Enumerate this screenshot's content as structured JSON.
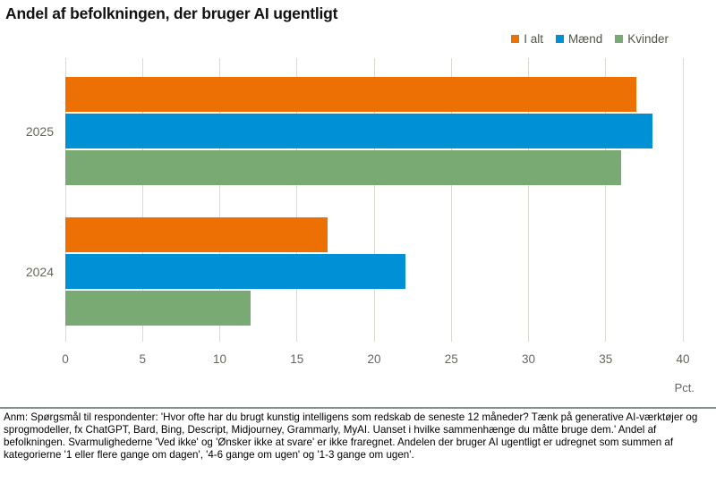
{
  "title": "Andel af befolkningen, der bruger AI ugentligt",
  "legend": [
    {
      "label": "I alt",
      "color": "#ed7004"
    },
    {
      "label": "Mænd",
      "color": "#0090d5"
    },
    {
      "label": "Kvinder",
      "color": "#7aaa73"
    }
  ],
  "axis_unit": "Pct.",
  "footnote": "Anm: Spørgsmål til respondenter: 'Hvor ofte har du brugt kunstig intelligens som redskab de seneste 12 måneder? Tænk på generative AI-værktøjer og sprogmodeller, fx ChatGPT, Bard, Bing, Descript, Midjourney, Grammarly, MyAI. Uanset i hvilke sammenhænge du måtte bruge dem.' Andel af befolkningen. Svarmulighederne 'Ved ikke' og 'Ønsker ikke at svare' er ikke fraregnet. Andelen der bruger AI ugentligt er udregnet som summen af kategorierne '1 eller flere gange om dagen', '4-6 gange om ugen' og '1-3 gange om ugen'.",
  "chart_data": {
    "type": "bar",
    "orientation": "horizontal",
    "title": "Andel af befolkningen, der bruger AI ugentligt",
    "categories": [
      "2025",
      "2024"
    ],
    "series": [
      {
        "name": "I alt",
        "color": "#ed7004",
        "values": [
          37,
          17
        ]
      },
      {
        "name": "Mænd",
        "color": "#0090d5",
        "values": [
          38,
          22
        ]
      },
      {
        "name": "Kvinder",
        "color": "#7aaa73",
        "values": [
          36,
          12
        ]
      }
    ],
    "xlabel": "Pct.",
    "xlim": [
      0,
      40
    ],
    "xticks": [
      0,
      5,
      10,
      15,
      20,
      25,
      30,
      35,
      40
    ],
    "grid": "vertical-only",
    "gridline_color": "#dcd9d3",
    "legend_position": "top-right",
    "tick_label_color": "#69655c"
  }
}
